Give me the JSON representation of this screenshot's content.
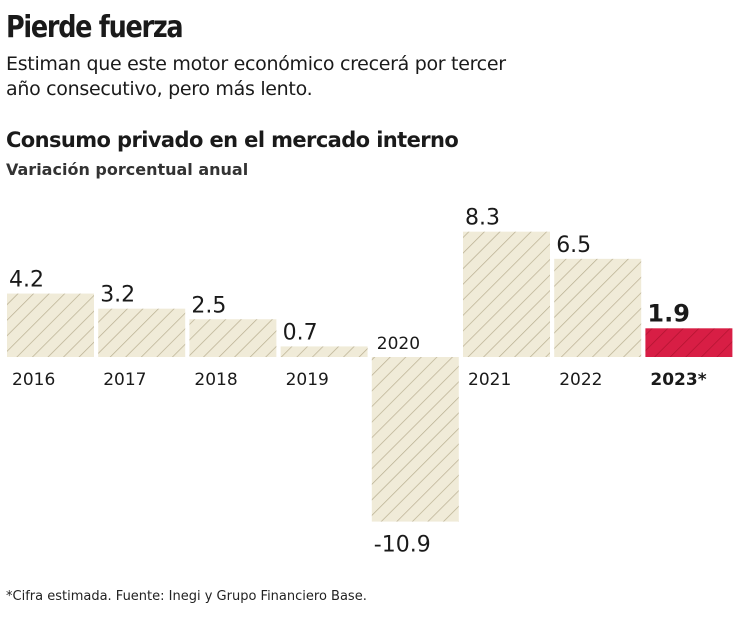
{
  "header": {
    "title": "Pierde fuerza",
    "subtitle": "Estiman que este motor económico crecerá por tercer año consecutivo, pero más lento."
  },
  "chart_data": {
    "type": "bar",
    "title": "Consumo privado en el mercado interno",
    "subtitle": "Variación porcentual anual",
    "categories": [
      "2016",
      "2017",
      "2018",
      "2019",
      "2020",
      "2021",
      "2022",
      "2023*"
    ],
    "values": [
      4.2,
      3.2,
      2.5,
      0.7,
      -10.9,
      8.3,
      6.5,
      1.9
    ],
    "data_labels": [
      "4.2",
      "3.2",
      "2.5",
      "0.7",
      "-10.9",
      "8.3",
      "6.5",
      "1.9"
    ],
    "highlight_index": 7,
    "colors": {
      "bar": "#f0ebd8",
      "hatch": "#b8ae90",
      "highlight": "#d81e45",
      "highlight_hatch": "#b0122f"
    },
    "grid": false,
    "legend": "none"
  },
  "footer": {
    "source": "*Cifra estimada. Fuente: Inegi y Grupo Financiero Base."
  }
}
